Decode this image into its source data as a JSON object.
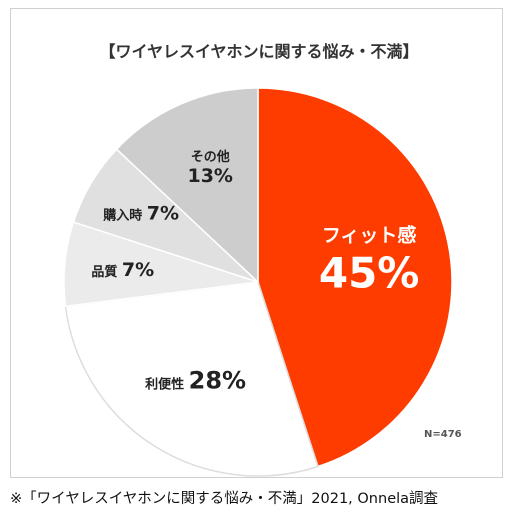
{
  "chart_data": {
    "type": "pie",
    "title": "【ワイヤレスイヤホンに関する悩み・不満】",
    "slices": [
      {
        "label": "フィット感",
        "value": 45,
        "display": "45%",
        "color": "#ff3c00"
      },
      {
        "label": "利便性",
        "value": 28,
        "display": "28%",
        "color": "#ffffff"
      },
      {
        "label": "品質",
        "value": 7,
        "display": "7%",
        "color": "#ebebeb"
      },
      {
        "label": "購入時",
        "value": 7,
        "display": "7%",
        "color": "#e0e0e0"
      },
      {
        "label": "その他",
        "value": 13,
        "display": "13%",
        "color": "#cdcdcd"
      }
    ],
    "n_note": "N=476"
  },
  "caption": "※「ワイヤレスイヤホンに関する悩み・不満」2021, Onnela調査"
}
